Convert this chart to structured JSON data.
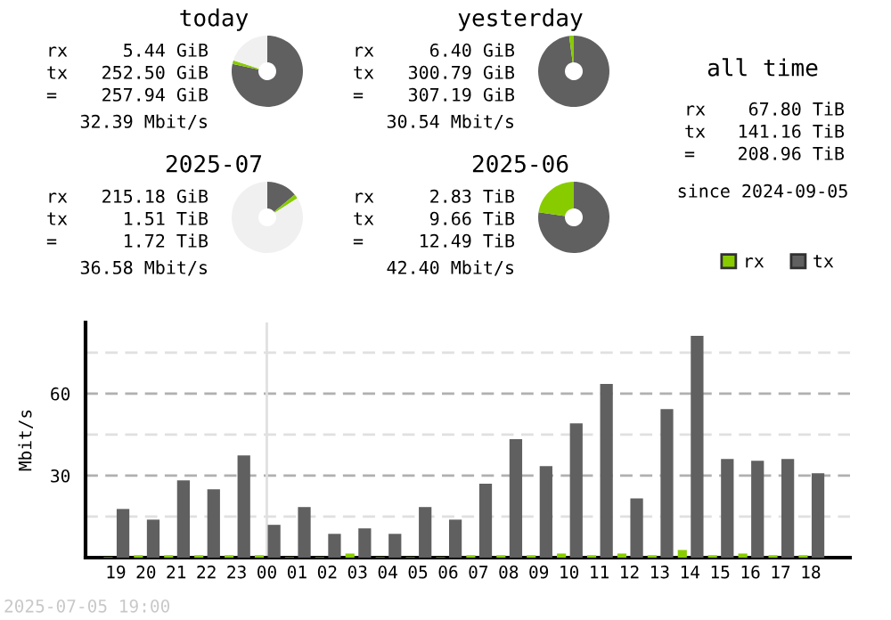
{
  "chart_data": [
    {
      "type": "donut",
      "title": "today",
      "categories": [
        null,
        null,
        null
      ],
      "values": [
        78.3,
        1.7,
        20.0
      ],
      "colors": [
        "#606060",
        "#88cc00",
        "#f0f0f0"
      ],
      "annotations": [
        "rx",
        "5.44 GiB",
        "tx",
        "252.50 GiB",
        "=",
        "257.94 GiB",
        "32.39 Mbit/s"
      ]
    },
    {
      "type": "donut",
      "title": "yesterday",
      "categories": [
        null,
        null,
        null
      ],
      "values": [
        97.92,
        2.08,
        0
      ],
      "colors": [
        "#606060",
        "#88cc00",
        "#f0f0f0"
      ],
      "annotations": [
        "rx",
        "6.40 GiB",
        "tx",
        "300.79 GiB",
        "=",
        "307.19 GiB",
        "30.54 Mbit/s"
      ]
    },
    {
      "type": "other",
      "title": "all time",
      "annotations": [
        "rx",
        "67.80 TiB",
        "tx",
        "141.16 TiB",
        "=",
        "208.96 TiB",
        "since 2024-09-05"
      ]
    },
    {
      "type": "donut",
      "title": "2025-07",
      "categories": [
        null,
        null,
        null
      ],
      "values": [
        14.0,
        2.0,
        84.0
      ],
      "colors": [
        "#606060",
        "#88cc00",
        "#f0f0f0"
      ],
      "annotations": [
        "rx",
        "215.18 GiB",
        "tx",
        "1.51 TiB",
        "=",
        "1.72 TiB",
        "36.58 Mbit/s"
      ]
    },
    {
      "type": "donut",
      "title": "2025-06",
      "categories": [
        null,
        null,
        null
      ],
      "values": [
        77.34,
        22.66,
        0
      ],
      "colors": [
        "#606060",
        "#88cc00",
        "#f0f0f0"
      ],
      "annotations": [
        "rx",
        "2.83 TiB",
        "tx",
        "9.66 TiB",
        "=",
        "12.49 TiB",
        "42.40 Mbit/s"
      ]
    },
    {
      "type": "bar",
      "ylabel": "Mbit/s",
      "categories": [
        "19",
        "20",
        "21",
        "22",
        "23",
        "00",
        "01",
        "02",
        "03",
        "04",
        "05",
        "06",
        "07",
        "08",
        "09",
        "10",
        "11",
        "12",
        "13",
        "14",
        "15",
        "16",
        "17",
        "18"
      ],
      "series": [
        {
          "name": "rx",
          "color": "#88cc00",
          "values": [
            0.2,
            0.9,
            0.9,
            0.9,
            0.9,
            0.9,
            0.2,
            0.2,
            1.5,
            0.2,
            0.2,
            0.2,
            0.9,
            0.9,
            0.9,
            1.5,
            0.9,
            1.5,
            0.9,
            2.8,
            0.9,
            1.5,
            0.9,
            0.9
          ]
        },
        {
          "name": "tx",
          "color": "#606060",
          "values": [
            17.8,
            13.9,
            28.3,
            25.0,
            37.4,
            12.0,
            18.5,
            8.7,
            10.7,
            8.7,
            18.5,
            13.9,
            27.0,
            43.3,
            33.5,
            49.1,
            63.5,
            21.7,
            54.3,
            81.1,
            36.1,
            35.4,
            36.1,
            30.9
          ]
        }
      ],
      "ylim": [
        0,
        86
      ],
      "yticks": [
        {
          "value": 0,
          "label": null
        },
        {
          "value": 15,
          "label": null
        },
        30,
        {
          "value": 45,
          "label": null
        },
        60,
        {
          "value": 75,
          "label": null
        }
      ],
      "grid": "y",
      "legend": "top right",
      "ref_lines": [
        {
          "axis": "x",
          "value": "00",
          "label": null,
          "color": "#e0e0e0",
          "line_style": "solid"
        }
      ],
      "annotations": [
        "2025-07-05 19:00"
      ]
    }
  ]
}
